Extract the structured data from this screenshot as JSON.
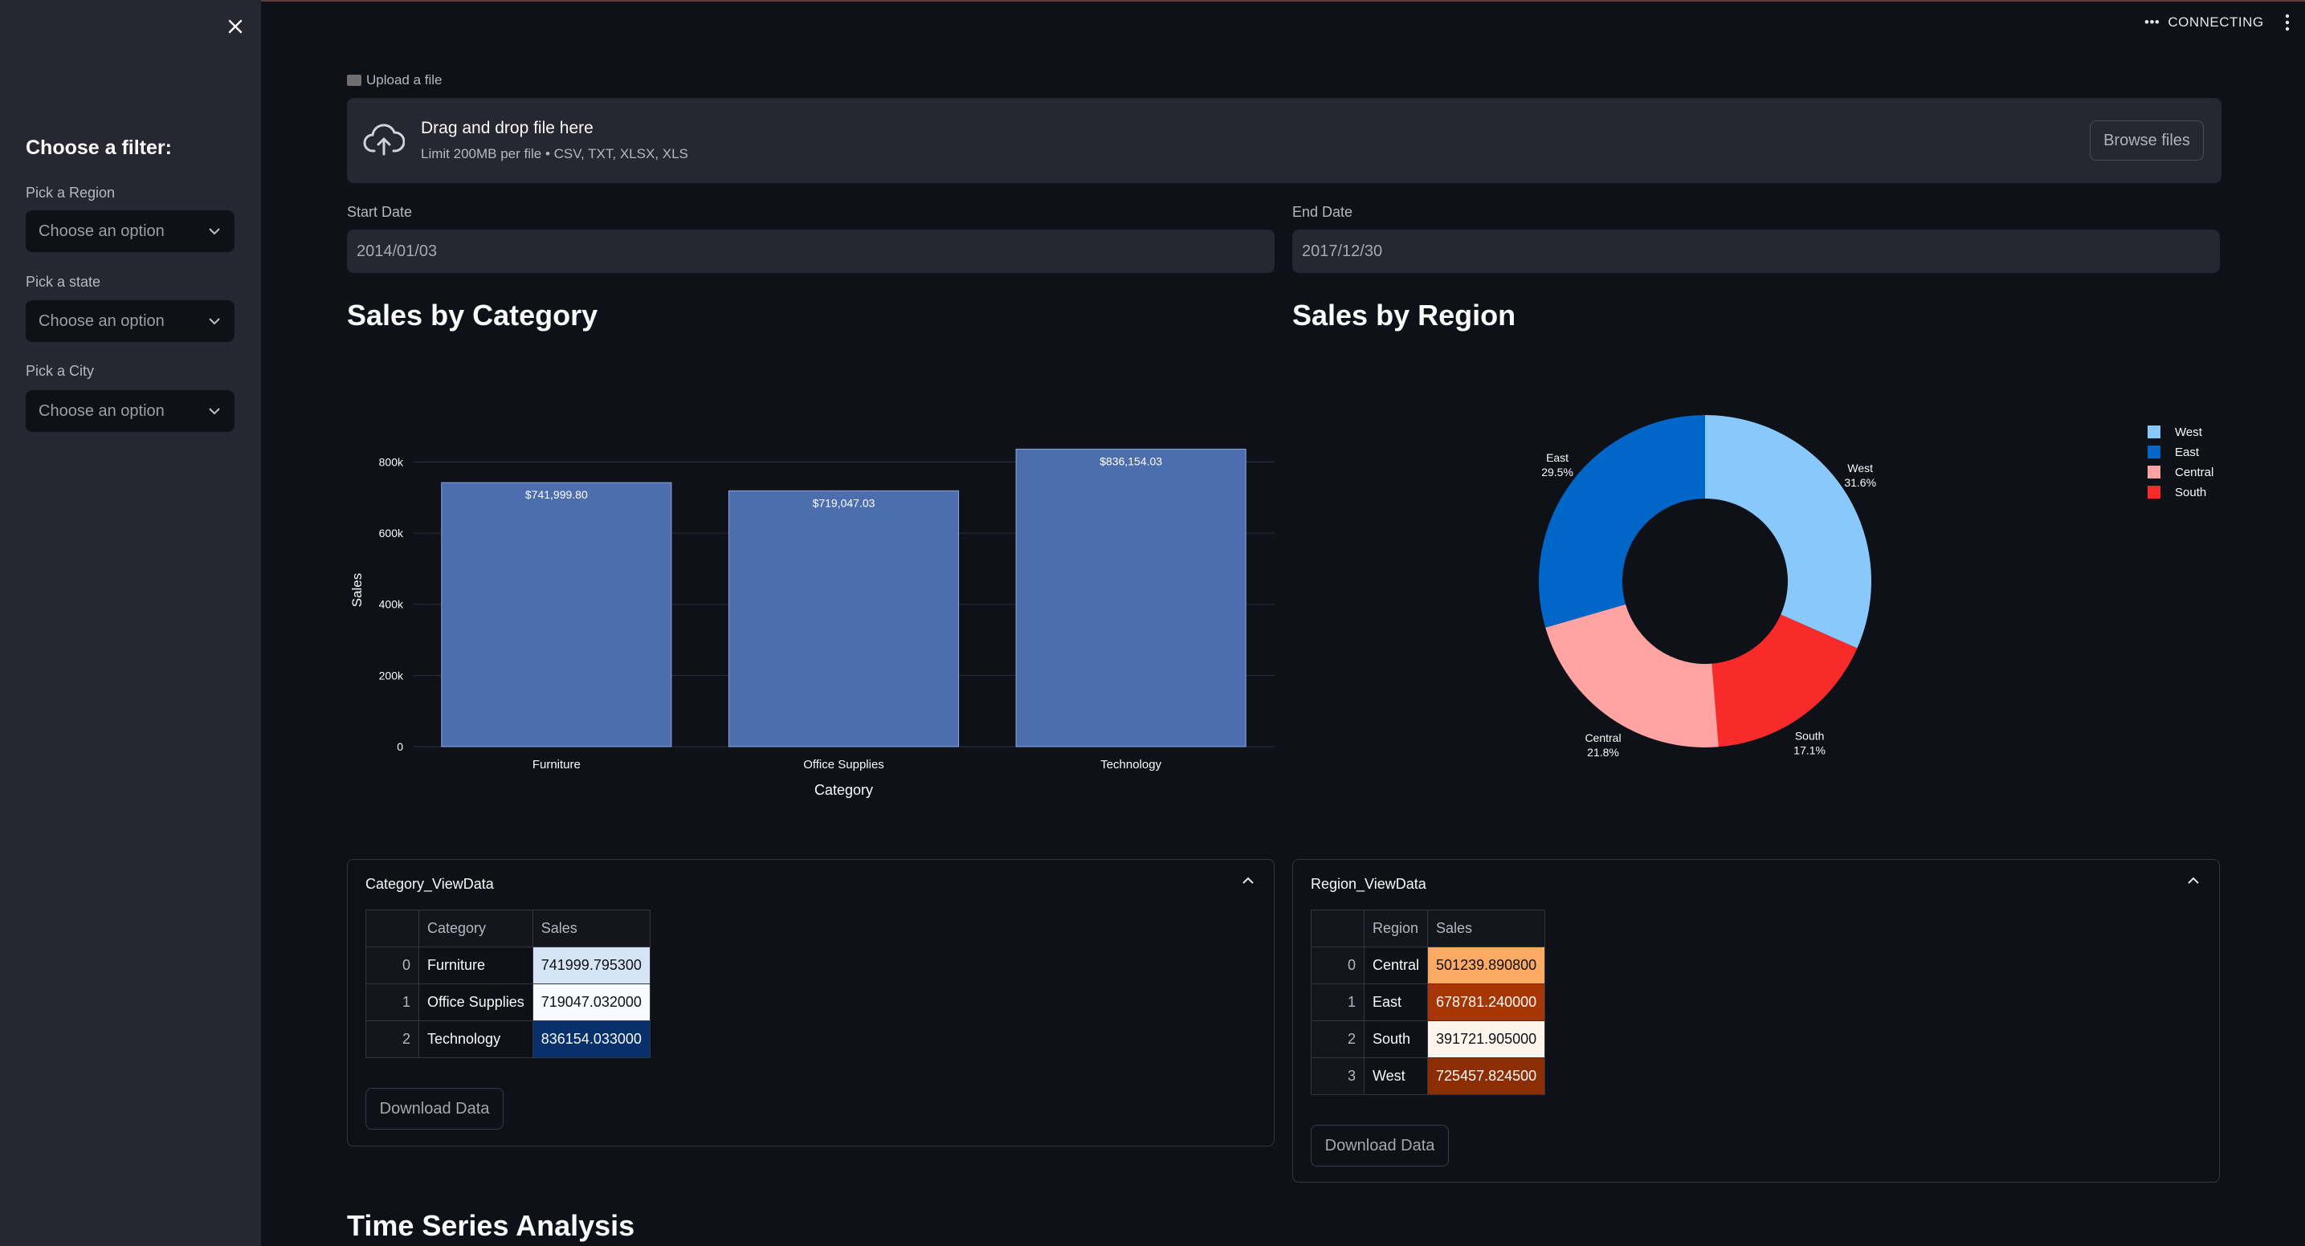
{
  "status": {
    "connecting": "CONNECTING"
  },
  "sidebar": {
    "title": "Choose a filter:",
    "filters": [
      {
        "label": "Pick a Region",
        "placeholder": "Choose an option"
      },
      {
        "label": "Pick a state",
        "placeholder": "Choose an option"
      },
      {
        "label": "Pick a City",
        "placeholder": "Choose an option"
      }
    ]
  },
  "upload": {
    "label": "Upload a file",
    "drop_title": "Drag and drop file here",
    "drop_sub": "Limit 200MB per file • CSV, TXT, XLSX, XLS",
    "browse": "Browse files"
  },
  "dates": {
    "start_label": "Start Date",
    "start_value": "2014/01/03",
    "end_label": "End Date",
    "end_value": "2017/12/30"
  },
  "headings": {
    "category": "Sales by Category",
    "region": "Sales by Region",
    "timeseries": "Time Series Analysis"
  },
  "chart_data": [
    {
      "type": "bar",
      "title": "Sales by Category",
      "categories": [
        "Furniture",
        "Office Supplies",
        "Technology"
      ],
      "values": [
        741999.8,
        719047.03,
        836154.03
      ],
      "data_labels": [
        "$741,999.80",
        "$719,047.03",
        "$836,154.03"
      ],
      "xlabel": "Category",
      "ylabel": "Sales",
      "ylim": [
        0,
        880000
      ],
      "yticks": [
        0,
        200000,
        400000,
        600000,
        800000
      ],
      "ytick_labels": [
        "0",
        "200k",
        "400k",
        "600k",
        "800k"
      ],
      "grid": true,
      "color": "#4c6eaf"
    },
    {
      "type": "pie",
      "title": "Sales by Region",
      "hole": true,
      "labels": [
        "West",
        "South",
        "Central",
        "East"
      ],
      "percents": [
        31.6,
        17.1,
        21.8,
        29.5
      ],
      "percent_labels": [
        "31.6%",
        "17.1%",
        "21.8%",
        "29.5%"
      ],
      "colors": [
        "#88c8fb",
        "#f92a2a",
        "#ffa3a3",
        "#0066c8"
      ],
      "legend": {
        "placement": "top-right",
        "items": [
          {
            "name": "West",
            "color": "#88c8fb"
          },
          {
            "name": "East",
            "color": "#0066c8"
          },
          {
            "name": "Central",
            "color": "#ffa3a3"
          },
          {
            "name": "South",
            "color": "#f92a2a"
          }
        ]
      }
    }
  ],
  "category_view": {
    "title": "Category_ViewData",
    "columns": [
      "",
      "Category",
      "Sales"
    ],
    "rows": [
      {
        "idx": "0",
        "name": "Furniture",
        "sales": "741999.795300",
        "color": "#d6e5f5"
      },
      {
        "idx": "1",
        "name": "Office Supplies",
        "sales": "719047.032000",
        "color": "#f7fbff"
      },
      {
        "idx": "2",
        "name": "Technology",
        "sales": "836154.033000",
        "color": "#08306b"
      }
    ],
    "download": "Download Data"
  },
  "region_view": {
    "title": "Region_ViewData",
    "columns": [
      "",
      "Region",
      "Sales"
    ],
    "rows": [
      {
        "idx": "0",
        "name": "Central",
        "sales": "501239.890800",
        "color": "#fdaa65"
      },
      {
        "idx": "1",
        "name": "East",
        "sales": "678781.240000",
        "color": "#a63603"
      },
      {
        "idx": "2",
        "name": "South",
        "sales": "391721.905000",
        "color": "#fff5eb"
      },
      {
        "idx": "3",
        "name": "West",
        "sales": "725457.824500",
        "color": "#8c2d04"
      }
    ],
    "download": "Download Data"
  }
}
